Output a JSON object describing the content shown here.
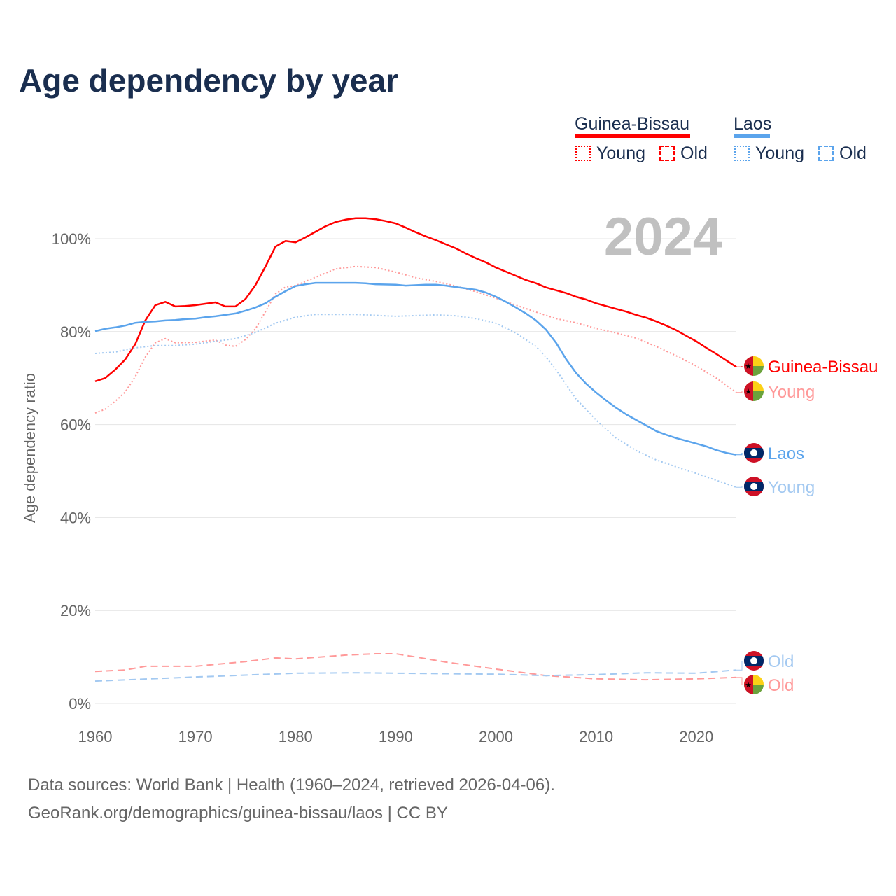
{
  "chart_data": {
    "type": "line",
    "title": "Age dependency by year",
    "ylabel": "Age dependency ratio",
    "xlabel": "",
    "xlim": [
      1960,
      2024
    ],
    "ylim": [
      0,
      110
    ],
    "x_ticks": [
      "1960",
      "1970",
      "1980",
      "1990",
      "2000",
      "2010",
      "2020"
    ],
    "y_ticks": [
      {
        "v": 0,
        "label": "0%"
      },
      {
        "v": 20,
        "label": "20%"
      },
      {
        "v": 40,
        "label": "40%"
      },
      {
        "v": 60,
        "label": "60%"
      },
      {
        "v": 80,
        "label": "80%"
      },
      {
        "v": 100,
        "label": "100%"
      }
    ],
    "year_watermark": "2024",
    "grid": true,
    "legend_position": "top-right",
    "legend": {
      "groups": [
        {
          "country": "Guinea-Bissau",
          "color": "#ff0000",
          "young": "Young",
          "old": "Old"
        },
        {
          "country": "Laos",
          "color": "#5ba4ec",
          "young": "Young",
          "old": "Old"
        }
      ]
    },
    "series": [
      {
        "name": "Guinea-Bissau",
        "label": "Guinea-Bissau",
        "color": "#ff0000",
        "style": "solid",
        "flag": "guinea-bissau",
        "points": [
          [
            1960,
            69.3
          ],
          [
            1961,
            70
          ],
          [
            1962,
            71.8
          ],
          [
            1963,
            74
          ],
          [
            1964,
            77.3
          ],
          [
            1965,
            82.4
          ],
          [
            1966,
            85.7
          ],
          [
            1967,
            86.4
          ],
          [
            1968,
            85.4
          ],
          [
            1969,
            85.5
          ],
          [
            1970,
            85.7
          ],
          [
            1971,
            86
          ],
          [
            1972,
            86.3
          ],
          [
            1973,
            85.4
          ],
          [
            1974,
            85.4
          ],
          [
            1975,
            87
          ],
          [
            1976,
            90
          ],
          [
            1977,
            94
          ],
          [
            1978,
            98.3
          ],
          [
            1979,
            99.5
          ],
          [
            1980,
            99.2
          ],
          [
            1981,
            100.3
          ],
          [
            1982,
            101.5
          ],
          [
            1983,
            102.7
          ],
          [
            1984,
            103.6
          ],
          [
            1985,
            104.1
          ],
          [
            1986,
            104.4
          ],
          [
            1987,
            104.4
          ],
          [
            1988,
            104.2
          ],
          [
            1989,
            103.8
          ],
          [
            1990,
            103.3
          ],
          [
            1991,
            102.4
          ],
          [
            1992,
            101.4
          ],
          [
            1993,
            100.5
          ],
          [
            1994,
            99.7
          ],
          [
            1995,
            98.8
          ],
          [
            1996,
            97.9
          ],
          [
            1997,
            96.8
          ],
          [
            1998,
            95.8
          ],
          [
            1999,
            94.9
          ],
          [
            2000,
            93.8
          ],
          [
            2001,
            92.9
          ],
          [
            2002,
            92
          ],
          [
            2003,
            91.1
          ],
          [
            2004,
            90.4
          ],
          [
            2005,
            89.5
          ],
          [
            2006,
            88.9
          ],
          [
            2007,
            88.3
          ],
          [
            2008,
            87.5
          ],
          [
            2009,
            86.9
          ],
          [
            2010,
            86.1
          ],
          [
            2011,
            85.5
          ],
          [
            2012,
            84.9
          ],
          [
            2013,
            84.3
          ],
          [
            2014,
            83.6
          ],
          [
            2015,
            83
          ],
          [
            2016,
            82.2
          ],
          [
            2017,
            81.3
          ],
          [
            2018,
            80.3
          ],
          [
            2019,
            79.1
          ],
          [
            2020,
            77.9
          ],
          [
            2021,
            76.5
          ],
          [
            2022,
            75.2
          ],
          [
            2023,
            73.8
          ],
          [
            2024,
            72.4
          ]
        ]
      },
      {
        "name": "Guinea-Bissau Young",
        "label": "Young",
        "color": "#ff9999",
        "style": "dotted",
        "flag": "guinea-bissau",
        "points": [
          [
            1960,
            62.5
          ],
          [
            1961,
            63.3
          ],
          [
            1962,
            65
          ],
          [
            1963,
            67
          ],
          [
            1964,
            70.3
          ],
          [
            1965,
            74.5
          ],
          [
            1966,
            77.6
          ],
          [
            1967,
            78.5
          ],
          [
            1968,
            77.6
          ],
          [
            1970,
            77.7
          ],
          [
            1972,
            78.2
          ],
          [
            1973,
            77.1
          ],
          [
            1974,
            76.8
          ],
          [
            1975,
            78.3
          ],
          [
            1976,
            80.6
          ],
          [
            1977,
            84.3
          ],
          [
            1978,
            88.1
          ],
          [
            1979,
            89.6
          ],
          [
            1980,
            89.9
          ],
          [
            1982,
            91.7
          ],
          [
            1984,
            93.5
          ],
          [
            1986,
            94
          ],
          [
            1988,
            93.8
          ],
          [
            1990,
            92.8
          ],
          [
            1992,
            91.6
          ],
          [
            1994,
            90.8
          ],
          [
            1996,
            89.8
          ],
          [
            1998,
            88.6
          ],
          [
            2000,
            87.2
          ],
          [
            2002,
            85.7
          ],
          [
            2004,
            84.2
          ],
          [
            2006,
            82.8
          ],
          [
            2008,
            81.9
          ],
          [
            2010,
            80.7
          ],
          [
            2012,
            79.7
          ],
          [
            2014,
            78.6
          ],
          [
            2016,
            76.8
          ],
          [
            2018,
            74.8
          ],
          [
            2020,
            72.6
          ],
          [
            2022,
            70
          ],
          [
            2024,
            66.9
          ]
        ]
      },
      {
        "name": "Guinea-Bissau Old",
        "label": "Old",
        "color": "#ff9999",
        "style": "dashed",
        "flag": "guinea-bissau",
        "points": [
          [
            1960,
            6.9
          ],
          [
            1963,
            7.2
          ],
          [
            1965,
            8
          ],
          [
            1970,
            8
          ],
          [
            1975,
            9
          ],
          [
            1978,
            9.8
          ],
          [
            1980,
            9.6
          ],
          [
            1985,
            10.4
          ],
          [
            1988,
            10.7
          ],
          [
            1990,
            10.7
          ],
          [
            1992,
            10
          ],
          [
            1995,
            8.9
          ],
          [
            2000,
            7.4
          ],
          [
            2005,
            6
          ],
          [
            2010,
            5.3
          ],
          [
            2015,
            5.1
          ],
          [
            2020,
            5.3
          ],
          [
            2024,
            5.6
          ]
        ]
      },
      {
        "name": "Laos",
        "label": "Laos",
        "color": "#5ba4ec",
        "style": "solid",
        "flag": "laos",
        "points": [
          [
            1960,
            80.1
          ],
          [
            1961,
            80.6
          ],
          [
            1962,
            80.9
          ],
          [
            1963,
            81.3
          ],
          [
            1964,
            81.9
          ],
          [
            1965,
            82.1
          ],
          [
            1966,
            82.2
          ],
          [
            1967,
            82.4
          ],
          [
            1968,
            82.5
          ],
          [
            1969,
            82.7
          ],
          [
            1970,
            82.8
          ],
          [
            1971,
            83.1
          ],
          [
            1972,
            83.3
          ],
          [
            1973,
            83.6
          ],
          [
            1974,
            83.9
          ],
          [
            1975,
            84.5
          ],
          [
            1976,
            85.2
          ],
          [
            1977,
            86.1
          ],
          [
            1978,
            87.5
          ],
          [
            1979,
            88.7
          ],
          [
            1980,
            89.8
          ],
          [
            1981,
            90.2
          ],
          [
            1982,
            90.5
          ],
          [
            1986,
            90.5
          ],
          [
            1987,
            90.4
          ],
          [
            1988,
            90.2
          ],
          [
            1990,
            90.1
          ],
          [
            1991,
            89.9
          ],
          [
            1993,
            90.1
          ],
          [
            1994,
            90.1
          ],
          [
            1995,
            89.9
          ],
          [
            1996,
            89.6
          ],
          [
            1997,
            89.3
          ],
          [
            1998,
            89
          ],
          [
            1999,
            88.4
          ],
          [
            2000,
            87.5
          ],
          [
            2001,
            86.4
          ],
          [
            2002,
            85.2
          ],
          [
            2003,
            83.9
          ],
          [
            2004,
            82.4
          ],
          [
            2005,
            80.4
          ],
          [
            2006,
            77.6
          ],
          [
            2007,
            74.1
          ],
          [
            2008,
            71.1
          ],
          [
            2009,
            68.8
          ],
          [
            2010,
            66.9
          ],
          [
            2011,
            65.2
          ],
          [
            2012,
            63.6
          ],
          [
            2013,
            62.2
          ],
          [
            2014,
            61
          ],
          [
            2015,
            59.8
          ],
          [
            2016,
            58.6
          ],
          [
            2017,
            57.8
          ],
          [
            2018,
            57.1
          ],
          [
            2019,
            56.5
          ],
          [
            2020,
            55.9
          ],
          [
            2021,
            55.3
          ],
          [
            2022,
            54.5
          ],
          [
            2023,
            53.9
          ],
          [
            2024,
            53.5
          ]
        ]
      },
      {
        "name": "Laos Young",
        "label": "Young",
        "color": "#a3c9f1",
        "style": "dotted",
        "flag": "laos",
        "points": [
          [
            1960,
            75.3
          ],
          [
            1962,
            75.6
          ],
          [
            1964,
            76.5
          ],
          [
            1966,
            77
          ],
          [
            1968,
            77
          ],
          [
            1970,
            77.3
          ],
          [
            1972,
            77.9
          ],
          [
            1974,
            78.5
          ],
          [
            1976,
            79.8
          ],
          [
            1978,
            81.8
          ],
          [
            1980,
            83.1
          ],
          [
            1982,
            83.7
          ],
          [
            1986,
            83.7
          ],
          [
            1990,
            83.3
          ],
          [
            1994,
            83.6
          ],
          [
            1996,
            83.4
          ],
          [
            1998,
            82.8
          ],
          [
            2000,
            81.8
          ],
          [
            2002,
            79.7
          ],
          [
            2004,
            76.8
          ],
          [
            2005,
            74.5
          ],
          [
            2006,
            71.8
          ],
          [
            2008,
            65.5
          ],
          [
            2010,
            61
          ],
          [
            2012,
            57.1
          ],
          [
            2014,
            54.4
          ],
          [
            2016,
            52.4
          ],
          [
            2018,
            50.9
          ],
          [
            2020,
            49.5
          ],
          [
            2022,
            48
          ],
          [
            2024,
            46.5
          ]
        ]
      },
      {
        "name": "Laos Old",
        "label": "Old",
        "color": "#a3c9f1",
        "style": "dashed",
        "flag": "laos",
        "points": [
          [
            1960,
            4.8
          ],
          [
            1970,
            5.7
          ],
          [
            1980,
            6.5
          ],
          [
            1986,
            6.6
          ],
          [
            1990,
            6.5
          ],
          [
            2000,
            6.3
          ],
          [
            2005,
            6
          ],
          [
            2010,
            6.2
          ],
          [
            2015,
            6.6
          ],
          [
            2020,
            6.5
          ],
          [
            2024,
            7.2
          ]
        ]
      }
    ],
    "source_lines": [
      "Data sources: World Bank | Health (1960–2024, retrieved 2026-04-06).",
      "GeoRank.org/demographics/guinea-bissau/laos | CC BY"
    ]
  }
}
